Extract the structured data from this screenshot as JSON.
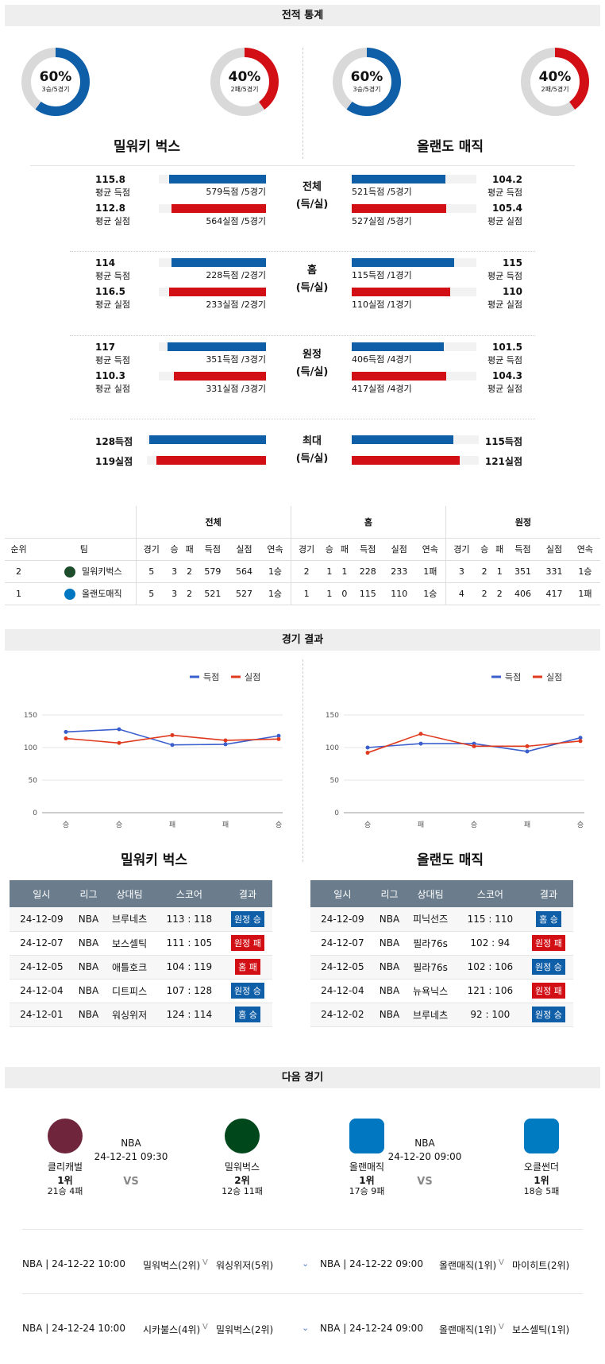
{
  "sections": {
    "stats": "전적 통계",
    "results": "경기 결과",
    "next": "다음 경기"
  },
  "teams": {
    "left": "밀워키 벅스",
    "right": "올랜도 매직"
  },
  "pies": [
    {
      "pct": "60%",
      "sub": "3승/5경기",
      "frac": 0.6,
      "color": "#0f5ea8"
    },
    {
      "pct": "40%",
      "sub": "2패/5경기",
      "frac": 0.4,
      "color": "#d20f15"
    },
    {
      "pct": "60%",
      "sub": "3승/5경기",
      "frac": 0.6,
      "color": "#0f5ea8"
    },
    {
      "pct": "40%",
      "sub": "2패/5경기",
      "frac": 0.4,
      "color": "#d20f15"
    }
  ],
  "stat_groups": [
    {
      "label": "전체",
      "label2": "(득/실)",
      "l_pts": "115.8",
      "l_pts_lab": "평균 득점",
      "l_pts_cnt": "579득점 /5경기",
      "l_pts_frac": 0.9,
      "l_alw": "112.8",
      "l_alw_lab": "평균 실점",
      "l_alw_cnt": "564실점 /5경기",
      "l_alw_frac": 0.88,
      "r_pts": "104.2",
      "r_pts_lab": "평균 득점",
      "r_pts_cnt": "521득점 /5경기",
      "r_pts_frac": 0.75,
      "r_alw": "105.4",
      "r_alw_lab": "평균 실점",
      "r_alw_cnt": "527실점 /5경기",
      "r_alw_frac": 0.76
    },
    {
      "label": "홈",
      "label2": "(득/실)",
      "l_pts": "114",
      "l_pts_lab": "평균 득점",
      "l_pts_cnt": "228득점 /2경기",
      "l_pts_frac": 0.88,
      "l_alw": "116.5",
      "l_alw_lab": "평균 실점",
      "l_alw_cnt": "233실점 /2경기",
      "l_alw_frac": 0.9,
      "r_pts": "115",
      "r_pts_lab": "평균 득점",
      "r_pts_cnt": "115득점 /1경기",
      "r_pts_frac": 0.82,
      "r_alw": "110",
      "r_alw_lab": "평균 실점",
      "r_alw_cnt": "110실점 /1경기",
      "r_alw_frac": 0.79
    },
    {
      "label": "원정",
      "label2": "(득/실)",
      "l_pts": "117",
      "l_pts_lab": "평균 득점",
      "l_pts_cnt": "351득점 /3경기",
      "l_pts_frac": 0.92,
      "l_alw": "110.3",
      "l_alw_lab": "평균 실점",
      "l_alw_cnt": "331실점 /3경기",
      "l_alw_frac": 0.86,
      "r_pts": "101.5",
      "r_pts_lab": "평균 득점",
      "r_pts_cnt": "406득점 /4경기",
      "r_pts_frac": 0.74,
      "r_alw": "104.3",
      "r_alw_lab": "평균 실점",
      "r_alw_cnt": "417실점 /4경기",
      "r_alw_frac": 0.76
    }
  ],
  "max_group": {
    "label": "최대",
    "label2": "(득/실)",
    "l_pts": "128득점",
    "l_alw": "119실점",
    "r_pts": "115득점",
    "r_alw": "121실점",
    "l_pts_frac": 0.98,
    "l_alw_frac": 0.92,
    "r_pts_frac": 0.8,
    "r_alw_frac": 0.85
  },
  "rank_table": {
    "groups": [
      "전체",
      "홈",
      "원정"
    ],
    "headers": [
      "순위",
      "팀",
      "경기",
      "승",
      "패",
      "득점",
      "실점",
      "연속",
      "경기",
      "승",
      "패",
      "득점",
      "실점",
      "연속",
      "경기",
      "승",
      "패",
      "득점",
      "실점",
      "연속"
    ],
    "rows": [
      [
        "2",
        "밀워키벅스",
        "5",
        "3",
        "2",
        "579",
        "564",
        "1승",
        "2",
        "1",
        "1",
        "228",
        "233",
        "1패",
        "3",
        "2",
        "1",
        "351",
        "331",
        "1승"
      ],
      [
        "1",
        "올랜도매직",
        "5",
        "3",
        "2",
        "521",
        "527",
        "1승",
        "1",
        "1",
        "0",
        "115",
        "110",
        "1승",
        "4",
        "2",
        "2",
        "406",
        "417",
        "1패"
      ]
    ]
  },
  "legend": {
    "pts": "득점",
    "alw": "실점"
  },
  "chart_data": [
    {
      "type": "line",
      "x": [
        "승",
        "승",
        "패",
        "패",
        "승"
      ],
      "ylim": [
        0,
        150
      ],
      "yticks": [
        0,
        50,
        100,
        150
      ],
      "series": [
        {
          "name": "득점",
          "values": [
            124,
            128,
            104,
            105,
            118
          ],
          "color": "#3a5fcd"
        },
        {
          "name": "실점",
          "values": [
            114,
            107,
            119,
            111,
            113
          ],
          "color": "#e03a1e"
        }
      ]
    },
    {
      "type": "line",
      "x": [
        "승",
        "패",
        "승",
        "패",
        "승"
      ],
      "ylim": [
        0,
        150
      ],
      "yticks": [
        0,
        50,
        100,
        150
      ],
      "series": [
        {
          "name": "득점",
          "values": [
            100,
            106,
            106,
            94,
            115
          ],
          "color": "#3a5fcd"
        },
        {
          "name": "실점",
          "values": [
            92,
            121,
            102,
            102,
            110
          ],
          "color": "#e03a1e"
        }
      ]
    }
  ],
  "result_headers": [
    "일시",
    "리그",
    "상대팀",
    "스코어",
    "결과"
  ],
  "results_left": [
    [
      "24-12-09",
      "NBA",
      "브루네츠",
      "113 : 118",
      "원정 승",
      "b"
    ],
    [
      "24-12-07",
      "NBA",
      "보스셀틱",
      "111 : 105",
      "원정 패",
      "r"
    ],
    [
      "24-12-05",
      "NBA",
      "애틀호크",
      "104 : 119",
      "홈 패",
      "r"
    ],
    [
      "24-12-04",
      "NBA",
      "디트피스",
      "107 : 128",
      "원정 승",
      "b"
    ],
    [
      "24-12-01",
      "NBA",
      "워싱위저",
      "124 : 114",
      "홈 승",
      "b"
    ]
  ],
  "results_right": [
    [
      "24-12-09",
      "NBA",
      "피닉선즈",
      "115 : 110",
      "홈 승",
      "b"
    ],
    [
      "24-12-07",
      "NBA",
      "필라76s",
      "102 : 94",
      "원정 패",
      "r"
    ],
    [
      "24-12-05",
      "NBA",
      "필라76s",
      "102 : 106",
      "원정 승",
      "b"
    ],
    [
      "24-12-04",
      "NBA",
      "뉴욕닉스",
      "121 : 106",
      "원정 패",
      "r"
    ],
    [
      "24-12-02",
      "NBA",
      "브루네츠",
      "92 : 100",
      "원정 승",
      "b"
    ]
  ],
  "next_games": [
    {
      "league": "NBA",
      "date": "24-12-21 09:30",
      "vs": "VS",
      "home": {
        "name": "클리캐벌",
        "rank": "1위",
        "rec": "21승 4패",
        "logo": "cavaliers-logo"
      },
      "away": {
        "name": "밀워벅스",
        "rank": "2위",
        "rec": "12승 11패",
        "logo": "bucks-logo"
      }
    },
    {
      "league": "NBA",
      "date": "24-12-20 09:00",
      "vs": "VS",
      "home": {
        "name": "올랜매직",
        "rank": "1위",
        "rec": "17승 9패",
        "logo": "magic-logo"
      },
      "away": {
        "name": "오클썬더",
        "rank": "1위",
        "rec": "18승 5패",
        "logo": "thunder-logo"
      }
    }
  ],
  "upcoming": [
    {
      "l_info": "NBA | 24-12-22 10:00",
      "l_t1": "밀워벅스(2위)",
      "l_vs": "V",
      "l_t2": "워싱위저(5위)",
      "r_info": "NBA | 24-12-22 09:00",
      "r_t1": "올랜매직(1위)",
      "r_vs": "V",
      "r_t2": "마이히트(2위)"
    },
    {
      "l_info": "NBA | 24-12-24 10:00",
      "l_t1": "시카불스(4위)",
      "l_vs": "V",
      "l_t2": "밀워벅스(2위)",
      "r_info": "NBA | 24-12-24 09:00",
      "r_t1": "올랜매직(1위)",
      "r_vs": "V",
      "r_t2": "보스셀틱(1위)"
    }
  ]
}
